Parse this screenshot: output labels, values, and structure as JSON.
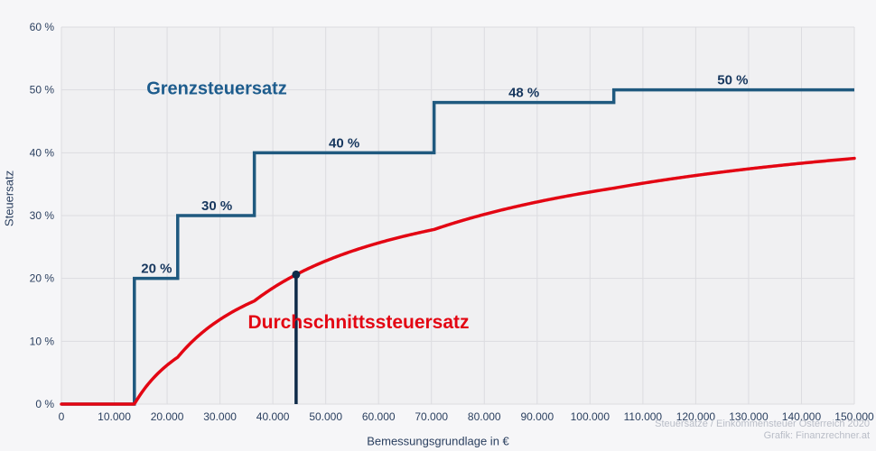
{
  "chart_data": {
    "type": "line",
    "title": "",
    "xlabel": "Bemessungsgrundlage in €",
    "ylabel": "Steuersatz",
    "grid": true,
    "legend_position": "inline-labels",
    "x_axis": {
      "min": 0,
      "max": 150000,
      "ticks": [
        {
          "value": 0,
          "label": "0"
        },
        {
          "value": 10000,
          "label": "10.000"
        },
        {
          "value": 20000,
          "label": "20.000"
        },
        {
          "value": 30000,
          "label": "30.000"
        },
        {
          "value": 40000,
          "label": "40.000"
        },
        {
          "value": 50000,
          "label": "50.000"
        },
        {
          "value": 60000,
          "label": "60.000"
        },
        {
          "value": 70000,
          "label": "70.000"
        },
        {
          "value": 80000,
          "label": "80.000"
        },
        {
          "value": 90000,
          "label": "90.000"
        },
        {
          "value": 100000,
          "label": "100.000"
        },
        {
          "value": 110000,
          "label": "110.000"
        },
        {
          "value": 120000,
          "label": "120.000"
        },
        {
          "value": 130000,
          "label": "130.000"
        },
        {
          "value": 140000,
          "label": "140.000"
        },
        {
          "value": 150000,
          "label": "150.000"
        }
      ]
    },
    "y_axis": {
      "min": 0,
      "max": 60,
      "ticks": [
        {
          "value": 0,
          "label": "0 %"
        },
        {
          "value": 10,
          "label": "10 %"
        },
        {
          "value": 20,
          "label": "20 %"
        },
        {
          "value": 30,
          "label": "30 %"
        },
        {
          "value": 40,
          "label": "40 %"
        },
        {
          "value": 50,
          "label": "50 %"
        },
        {
          "value": 60,
          "label": "60 %"
        }
      ]
    },
    "series": [
      {
        "name": "Grenzsteuersatz",
        "type": "step",
        "color": "#1f597f",
        "brackets": [
          {
            "from": 0,
            "to": 13800,
            "rate": 0
          },
          {
            "from": 13800,
            "to": 22000,
            "rate": 20
          },
          {
            "from": 22000,
            "to": 36500,
            "rate": 30
          },
          {
            "from": 36500,
            "to": 70500,
            "rate": 40
          },
          {
            "from": 70500,
            "to": 104500,
            "rate": 48
          },
          {
            "from": 104500,
            "to": 150000,
            "rate": 50
          }
        ]
      },
      {
        "name": "Durchschnittssteuersatz",
        "type": "derived-average-of-brackets",
        "color": "#e30613",
        "samples": [
          {
            "x": 13800,
            "avg": 0
          },
          {
            "x": 20000,
            "avg": 6.2
          },
          {
            "x": 30000,
            "avg": 13.5
          },
          {
            "x": 40000,
            "avg": 18.5
          },
          {
            "x": 50000,
            "avg": 22.8
          },
          {
            "x": 60000,
            "avg": 25.7
          },
          {
            "x": 70000,
            "avg": 27.7
          },
          {
            "x": 80000,
            "avg": 30.2
          },
          {
            "x": 90000,
            "avg": 32.2
          },
          {
            "x": 100000,
            "avg": 33.8
          },
          {
            "x": 110000,
            "avg": 35.1
          },
          {
            "x": 120000,
            "avg": 36.4
          },
          {
            "x": 130000,
            "avg": 37.4
          },
          {
            "x": 140000,
            "avg": 38.3
          },
          {
            "x": 150000,
            "avg": 39.1
          }
        ]
      }
    ],
    "annotations": [
      {
        "label": "20 %",
        "x": 18000,
        "rate": 20
      },
      {
        "label": "30 %",
        "x": 29400,
        "rate": 30
      },
      {
        "label": "40 %",
        "x": 53500,
        "rate": 40
      },
      {
        "label": "48 %",
        "x": 87500,
        "rate": 48
      },
      {
        "label": "50 %",
        "x": 127000,
        "rate": 50
      }
    ],
    "marker": {
      "x": 44400,
      "rate_percent": 20.6
    }
  },
  "attribution": {
    "line1": "Steuersätze / Einkommensteuer Österreich 2020",
    "line2": "Grafik: Finanzrechner.at"
  },
  "colors": {
    "page_bg": "#f6f6f8",
    "plot_bg": "#f0f0f2",
    "grid": "#dcdce0",
    "tick": "#2a3f5f",
    "dark_navy": "#17375e",
    "line_blue": "#1f597f",
    "label_blue": "#1d5c8d",
    "red": "#e30613",
    "marker": "#0e2b49",
    "attribution": "#b9bdc7"
  }
}
